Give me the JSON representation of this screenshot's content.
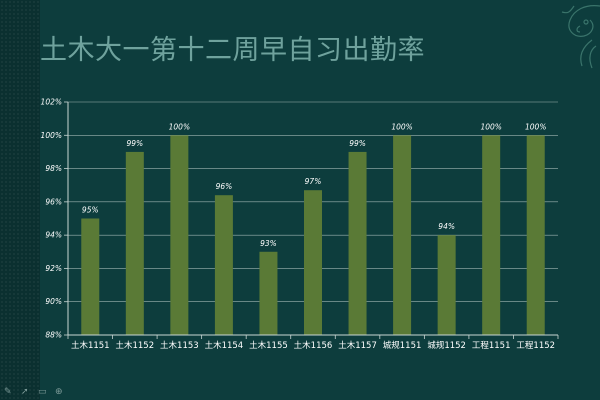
{
  "slide": {
    "title": "土木大一第十二周早自习出勤率"
  },
  "chart_data": {
    "type": "bar",
    "title": "土木大一第十二周早自习出勤率",
    "categories": [
      "土木1151",
      "土木1152",
      "土木1153",
      "土木1154",
      "土木1155",
      "土木1156",
      "土木1157",
      "城规1151",
      "城规1152",
      "工程1151",
      "工程1152"
    ],
    "values": [
      95,
      99,
      100,
      96.4,
      93,
      96.7,
      99,
      100,
      94,
      100,
      100
    ],
    "data_labels": [
      "95%",
      "99%",
      "100%",
      "96%",
      "93%",
      "97%",
      "99%",
      "100%",
      "94%",
      "100%",
      "100%"
    ],
    "y_ticks": [
      88,
      90,
      92,
      94,
      96,
      98,
      100,
      102
    ],
    "y_tick_labels": [
      "88%",
      "90%",
      "92%",
      "94%",
      "96%",
      "98%",
      "100%",
      "102%"
    ],
    "ylim": [
      88,
      102
    ],
    "xlabel": "",
    "ylabel": "",
    "grid": true,
    "legend": "none",
    "bar_color": "#5a7a36",
    "grid_color": "#9fb5b3",
    "axis_color": "#c9d6d4"
  },
  "toolbar": {
    "icons": [
      "pen-icon",
      "pointer-icon",
      "slides-icon",
      "zoom-icon"
    ]
  }
}
